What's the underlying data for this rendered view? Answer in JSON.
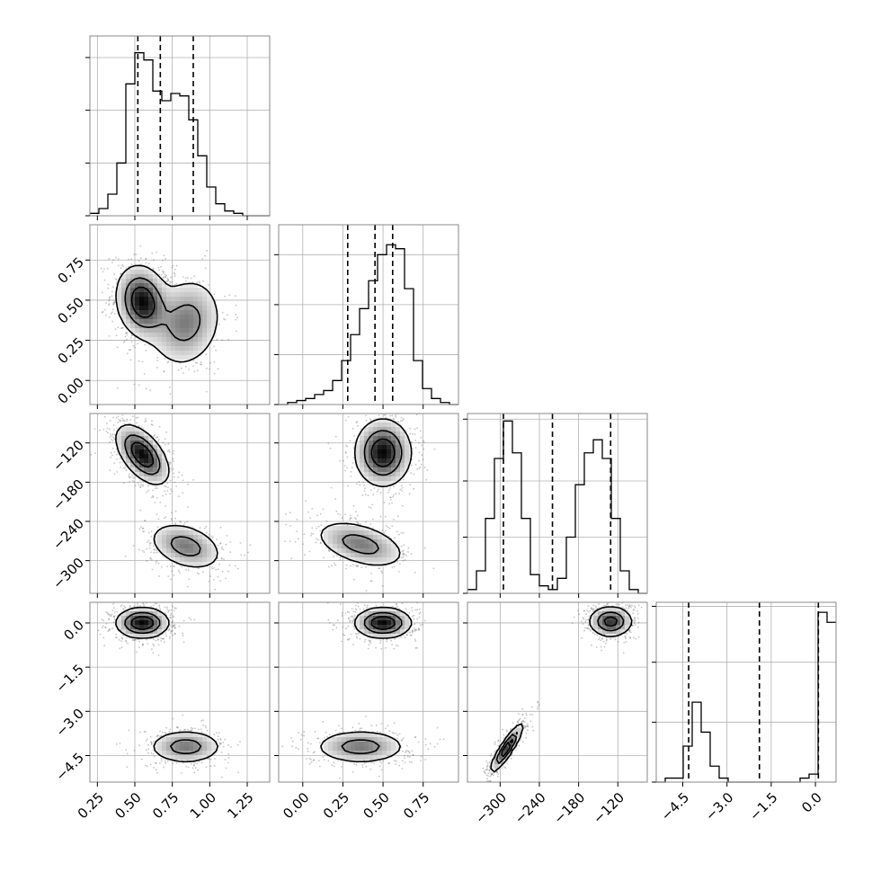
{
  "chart_data": {
    "type": "corner",
    "grid": true,
    "params": [
      {
        "id": "p0",
        "range": [
          0.2,
          1.4
        ],
        "ticks": [
          0.25,
          0.5,
          0.75,
          1.0,
          1.25
        ],
        "tick_labels": [
          "0.25",
          "0.50",
          "0.75",
          "1.00",
          "1.25"
        ],
        "quantiles": [
          0.52,
          0.67,
          0.89
        ],
        "hist_edges_start": 0.2,
        "hist_bin_width": 0.06,
        "hist_counts": [
          1,
          3,
          9,
          22,
          55,
          68,
          65,
          52,
          48,
          51,
          50,
          40,
          25,
          12,
          5,
          2,
          1,
          0,
          0,
          0
        ],
        "hist_ymax": 75,
        "hist_yticks": [
          0,
          22,
          44,
          66
        ]
      },
      {
        "id": "p1",
        "range": [
          -0.15,
          0.97
        ],
        "ticks": [
          0.0,
          0.25,
          0.5,
          0.75
        ],
        "tick_labels": [
          "0.00",
          "0.25",
          "0.50",
          "0.75"
        ],
        "quantiles": [
          0.28,
          0.45,
          0.56
        ],
        "hist_edges_start": -0.15,
        "hist_bin_width": 0.056,
        "hist_counts": [
          0,
          1,
          2,
          3,
          5,
          7,
          12,
          22,
          35,
          48,
          62,
          75,
          80,
          78,
          58,
          22,
          8,
          3,
          1,
          0
        ],
        "hist_ymax": 90,
        "hist_yticks": [
          0,
          25,
          50,
          75
        ]
      },
      {
        "id": "p2",
        "range": [
          -350,
          -75
        ],
        "ticks": [
          -300,
          -240,
          -180,
          -120
        ],
        "tick_labels": [
          "−300",
          "−240",
          "−180",
          "−120"
        ],
        "quantiles": [
          -295,
          -220,
          -131
        ],
        "hist_edges_start": -350,
        "hist_bin_width": 13.75,
        "hist_counts": [
          2,
          12,
          40,
          72,
          92,
          75,
          40,
          10,
          4,
          2,
          8,
          30,
          58,
          75,
          82,
          72,
          40,
          12,
          2,
          0
        ],
        "hist_ymax": 96,
        "hist_yticks": [
          0,
          30,
          60,
          93
        ]
      },
      {
        "id": "p3",
        "range": [
          -5.4,
          0.7
        ],
        "ticks": [
          -4.5,
          -3.0,
          -1.5,
          0.0
        ],
        "tick_labels": [
          "−4.5",
          "−3.0",
          "−1.5",
          "0.0"
        ],
        "quantiles": [
          -4.3,
          -1.9,
          0.1
        ],
        "hist_edges_start": -5.4,
        "hist_bin_width": 0.305,
        "hist_counts": [
          0,
          2,
          2,
          18,
          40,
          25,
          8,
          2,
          0,
          0,
          0,
          0,
          0,
          0,
          0,
          0,
          2,
          4,
          85,
          80
        ],
        "hist_ymax": 90,
        "hist_yticks": [
          0,
          30,
          60,
          88
        ]
      }
    ],
    "pairs": [
      {
        "row": 1,
        "col": 0,
        "clusters": [
          {
            "cx": 0.55,
            "cy": 0.49,
            "sx": 0.085,
            "sy": 0.11,
            "rho": -0.15,
            "peak": 1.0
          },
          {
            "cx": 0.84,
            "cy": 0.36,
            "sx": 0.12,
            "sy": 0.14,
            "rho": 0.15,
            "peak": 0.55
          }
        ]
      },
      {
        "row": 2,
        "col": 0,
        "clusters": [
          {
            "cx": 0.55,
            "cy": -138,
            "sx": 0.085,
            "sy": 22,
            "rho": -0.55,
            "peak": 1.0
          },
          {
            "cx": 0.84,
            "cy": -278,
            "sx": 0.12,
            "sy": 18,
            "rho": -0.35,
            "peak": 0.55
          }
        ]
      },
      {
        "row": 2,
        "col": 1,
        "clusters": [
          {
            "cx": 0.5,
            "cy": -135,
            "sx": 0.085,
            "sy": 25,
            "rho": 0.0,
            "peak": 1.0
          },
          {
            "cx": 0.36,
            "cy": -275,
            "sx": 0.14,
            "sy": 18,
            "rho": -0.45,
            "peak": 0.55
          }
        ]
      },
      {
        "row": 3,
        "col": 0,
        "clusters": [
          {
            "cx": 0.55,
            "cy": 0.0,
            "sx": 0.085,
            "sy": 0.25,
            "rho": 0.0,
            "peak": 1.0
          },
          {
            "cx": 0.84,
            "cy": -4.2,
            "sx": 0.12,
            "sy": 0.28,
            "rho": 0.0,
            "peak": 0.55
          }
        ]
      },
      {
        "row": 3,
        "col": 1,
        "clusters": [
          {
            "cx": 0.5,
            "cy": 0.0,
            "sx": 0.085,
            "sy": 0.25,
            "rho": 0.0,
            "peak": 1.0
          },
          {
            "cx": 0.36,
            "cy": -4.2,
            "sx": 0.14,
            "sy": 0.28,
            "rho": 0.0,
            "peak": 0.55
          }
        ]
      },
      {
        "row": 3,
        "col": 2,
        "clusters": [
          {
            "cx": -131,
            "cy": 0.05,
            "sx": 16,
            "sy": 0.25,
            "rho": 0.0,
            "peak": 0.85
          },
          {
            "cx": -290,
            "cy": -4.25,
            "sx": 12,
            "sy": 0.4,
            "rho": 0.9,
            "peak": 1.0
          }
        ]
      }
    ],
    "contour_levels": [
      0.12,
      0.4,
      0.7
    ],
    "colors": {
      "hist_line": "#000000",
      "quantile_line": "#000000",
      "grid": "#b0b0b0",
      "density_dark": "#000000",
      "scatter": "#555555"
    }
  }
}
